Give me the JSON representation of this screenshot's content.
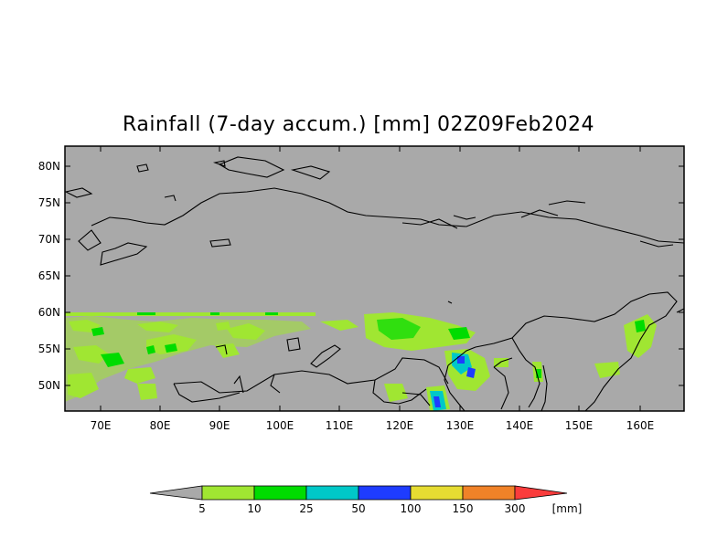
{
  "title": "Rainfall (7-day accum.) [mm] 02Z09Feb2024",
  "map": {
    "background_color": "#a9a9a9",
    "lon_ticks": [
      "70E",
      "80E",
      "90E",
      "100E",
      "110E",
      "120E",
      "130E",
      "140E",
      "150E",
      "160E"
    ],
    "lat_ticks": [
      "80N",
      "75N",
      "70N",
      "65N",
      "60N",
      "55N",
      "50N"
    ]
  },
  "legend": {
    "values": [
      "5",
      "10",
      "25",
      "50",
      "100",
      "150",
      "300"
    ],
    "unit": "[mm]",
    "colors": [
      "#a0e632",
      "#00dc00",
      "#00c8c8",
      "#1e3cff",
      "#e6dc32",
      "#f08228",
      "#fa3c3c"
    ],
    "below_color": "#a9a9a9"
  }
}
